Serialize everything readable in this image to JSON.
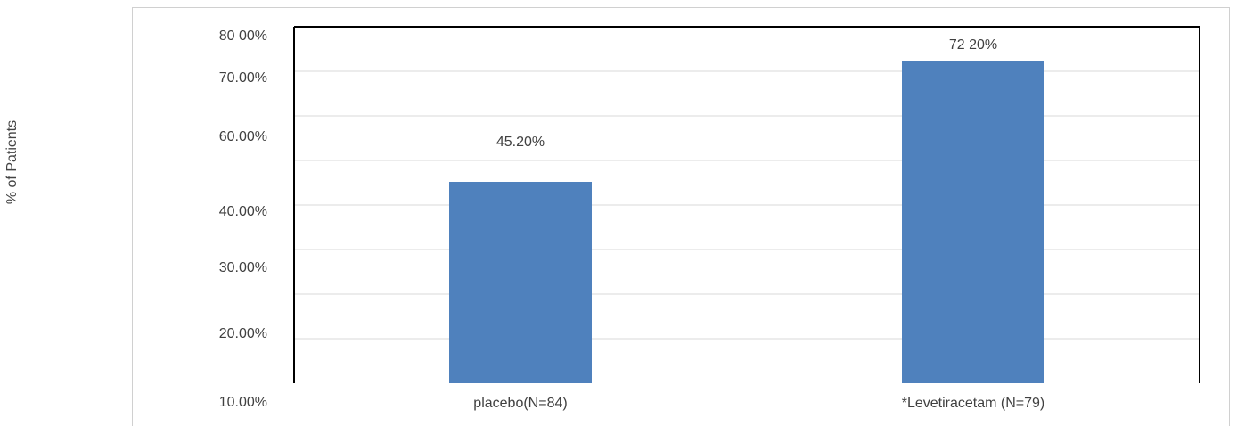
{
  "chart_data": {
    "type": "bar",
    "title": "",
    "xlabel": "",
    "ylabel": "% of Patients",
    "categories": [
      "placebo(N=84)",
      "*Levetiracetam (N=79)"
    ],
    "values": [
      45.2,
      72.2
    ],
    "data_labels": [
      "45.20%",
      "72 20%"
    ],
    "ytick_labels": [
      "10.00%",
      "20.00%",
      "30.00%",
      "40.00%",
      "60.00%",
      "70.00%",
      "80 00%"
    ],
    "ylim": [
      0,
      80
    ],
    "grid": true,
    "legend": "none",
    "bar_color": "#4f81bd",
    "gridline_color": "#d9d9d9"
  }
}
